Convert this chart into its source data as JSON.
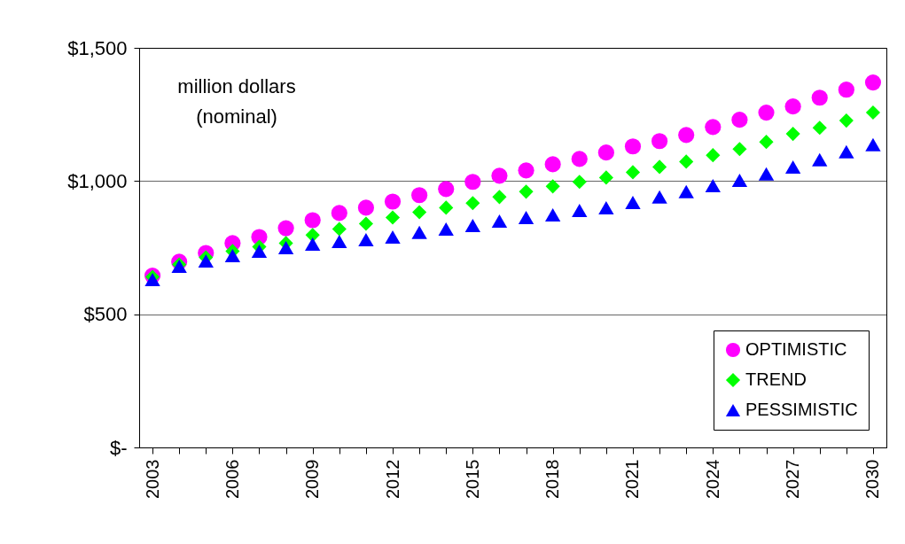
{
  "chart_data": {
    "type": "scatter",
    "categories": [
      "2003",
      null,
      null,
      "2006",
      null,
      null,
      "2009",
      null,
      null,
      "2012",
      null,
      null,
      "2015",
      null,
      null,
      "2018",
      null,
      null,
      "2021",
      null,
      null,
      "2024",
      null,
      null,
      "2027",
      null,
      null,
      "2030"
    ],
    "series": [
      {
        "name": "OPTIMISTIC",
        "color": "#ff00ff",
        "marker": "circle",
        "values": [
          645,
          697,
          730,
          767,
          790,
          823,
          853,
          880,
          900,
          923,
          947,
          970,
          997,
          1020,
          1040,
          1063,
          1083,
          1107,
          1130,
          1150,
          1173,
          1203,
          1230,
          1257,
          1280,
          1313,
          1343,
          1370
        ]
      },
      {
        "name": "TREND",
        "color": "#00ff00",
        "marker": "diamond",
        "values": [
          640,
          687,
          713,
          737,
          753,
          767,
          797,
          820,
          840,
          863,
          883,
          900,
          917,
          940,
          960,
          980,
          997,
          1013,
          1033,
          1053,
          1073,
          1097,
          1120,
          1147,
          1177,
          1200,
          1227,
          1257
        ]
      },
      {
        "name": "PESSIMISTIC",
        "color": "#0000ff",
        "marker": "triangle",
        "values": [
          630,
          680,
          700,
          720,
          737,
          750,
          763,
          773,
          780,
          790,
          807,
          820,
          833,
          850,
          863,
          873,
          890,
          900,
          920,
          940,
          960,
          983,
          1003,
          1027,
          1053,
          1080,
          1110,
          1137
        ]
      }
    ],
    "annotations": [
      "million dollars",
      "(nominal)"
    ],
    "ylim": [
      0,
      1500
    ],
    "yticks": [
      {
        "value": 0,
        "label": "$-"
      },
      {
        "value": 500,
        "label": "$500"
      },
      {
        "value": 1000,
        "label": "$1,000"
      },
      {
        "value": 1500,
        "label": "$1,500"
      }
    ],
    "grid": "y",
    "legend": "bottom right"
  }
}
